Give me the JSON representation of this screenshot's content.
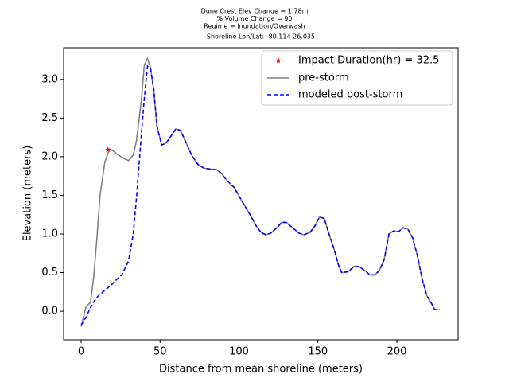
{
  "chart_data": {
    "type": "line",
    "title": [
      "Dune Crest Elev Change = 1.78m",
      "% Volume Change = 90",
      "Regime = Inundation/Overwash",
      "Shoreline Lon/Lat: -80.114 26.035"
    ],
    "x_label": "Distance from mean shoreline (meters)",
    "y_label": "Elevation (meters)",
    "xlim": [
      -11.1,
      238.8
    ],
    "ylim": [
      -0.37,
      3.41
    ],
    "xticks": [
      0,
      50,
      100,
      150,
      200
    ],
    "yticks": [
      {
        "value": 0,
        "label": "0.0"
      },
      {
        "value": 0.5,
        "label": "0.5"
      },
      {
        "value": 1,
        "label": "1.0"
      },
      {
        "value": 1.5,
        "label": "1.5"
      },
      {
        "value": 2,
        "label": "2.0"
      },
      {
        "value": 2.5,
        "label": "2.5"
      },
      {
        "value": 3,
        "label": "3.0"
      }
    ],
    "legend": "upper right",
    "x": [
      0,
      3,
      6,
      8,
      10,
      12,
      15,
      18,
      20,
      23,
      26,
      30,
      33,
      35,
      38,
      40,
      42,
      44,
      46,
      48,
      51,
      54,
      57,
      60,
      63,
      66,
      70,
      74,
      78,
      82,
      86,
      89,
      92,
      97,
      102,
      107,
      111,
      114,
      117,
      120,
      124,
      127,
      130,
      134,
      138,
      141,
      145,
      148,
      151,
      154,
      157,
      160,
      163,
      165,
      169,
      173,
      176,
      180,
      183,
      186,
      189,
      192,
      195,
      198,
      201,
      204,
      207,
      210,
      213,
      216,
      219,
      222,
      224,
      227
    ],
    "series": [
      {
        "name": "pre-storm",
        "color": "#808080",
        "dash": false,
        "values": [
          -0.2,
          0.05,
          0.12,
          0.45,
          0.95,
          1.5,
          1.93,
          2.1,
          2.08,
          2.03,
          1.99,
          1.95,
          2.02,
          2.2,
          2.7,
          3.18,
          3.27,
          3.15,
          2.85,
          2.4,
          2.15,
          2.18,
          2.27,
          2.36,
          2.34,
          2.2,
          2.02,
          1.9,
          1.85,
          1.84,
          1.83,
          1.78,
          1.7,
          1.6,
          1.42,
          1.25,
          1.1,
          1.02,
          0.99,
          1.01,
          1.08,
          1.15,
          1.15,
          1.08,
          1.01,
          0.99,
          1.02,
          1.1,
          1.22,
          1.2,
          1.0,
          0.82,
          0.6,
          0.5,
          0.51,
          0.58,
          0.58,
          0.52,
          0.47,
          0.47,
          0.53,
          0.67,
          1.0,
          1.04,
          1.03,
          1.08,
          1.06,
          0.95,
          0.72,
          0.42,
          0.2,
          0.1,
          0.02,
          0.02
        ]
      },
      {
        "name": "modeled post-storm",
        "color": "#0000ff",
        "dash": true,
        "values": [
          -0.18,
          -0.08,
          0.05,
          0.12,
          0.18,
          0.22,
          0.27,
          0.32,
          0.36,
          0.42,
          0.48,
          0.65,
          1.0,
          1.45,
          2.25,
          2.75,
          3.17,
          3.13,
          2.88,
          2.4,
          2.15,
          2.18,
          2.27,
          2.36,
          2.34,
          2.2,
          2.02,
          1.9,
          1.85,
          1.84,
          1.83,
          1.78,
          1.7,
          1.6,
          1.42,
          1.25,
          1.1,
          1.02,
          0.99,
          1.01,
          1.08,
          1.15,
          1.15,
          1.08,
          1.01,
          0.99,
          1.02,
          1.1,
          1.22,
          1.2,
          1.0,
          0.82,
          0.6,
          0.5,
          0.51,
          0.58,
          0.58,
          0.52,
          0.47,
          0.47,
          0.53,
          0.67,
          1.0,
          1.04,
          1.03,
          1.08,
          1.06,
          0.95,
          0.72,
          0.42,
          0.2,
          0.1,
          0.02,
          0.02
        ]
      }
    ],
    "marker": {
      "name": "Impact Duration(hr) = 32.5",
      "color": "#ff0000",
      "x": 17,
      "y": 2.09
    }
  }
}
